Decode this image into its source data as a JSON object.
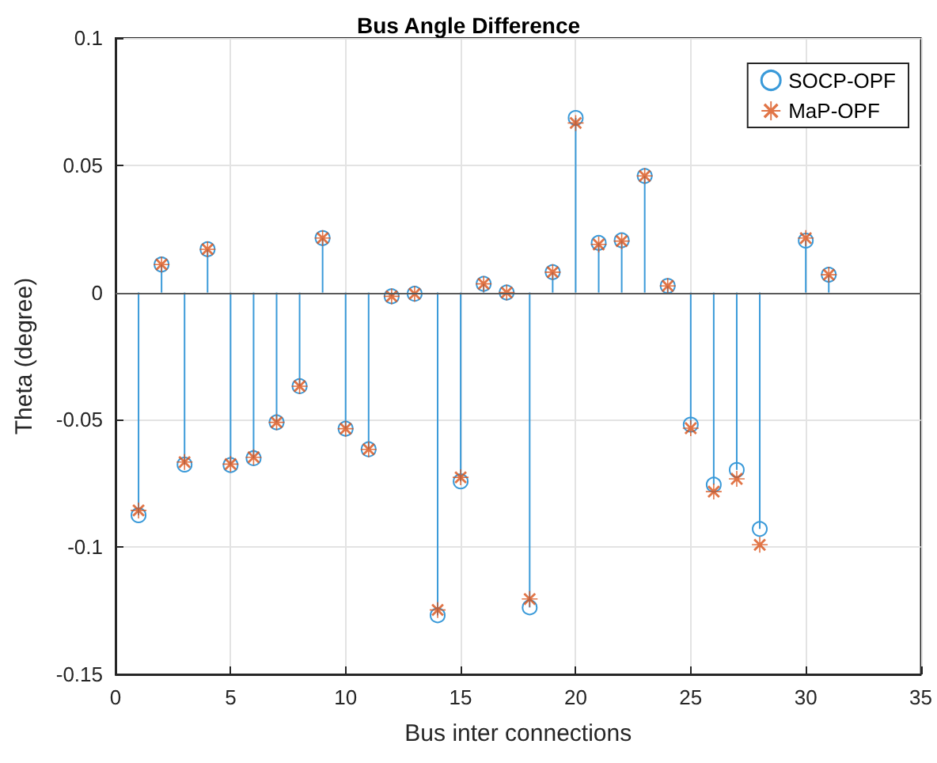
{
  "chart_data": {
    "type": "lollipop",
    "title": "Bus Angle Difference",
    "xlabel": "Bus inter connections",
    "ylabel": "Theta (degree)",
    "x": [
      1,
      2,
      3,
      4,
      5,
      6,
      7,
      8,
      9,
      10,
      11,
      12,
      13,
      14,
      15,
      16,
      17,
      18,
      19,
      20,
      21,
      22,
      23,
      24,
      25,
      26,
      27,
      28,
      29,
      30,
      31
    ],
    "series": [
      {
        "name": "SOCP-OPF",
        "marker": "circle",
        "color": "#3a9ad9",
        "values": [
          -0.0875,
          0.011,
          -0.0676,
          0.017,
          -0.0678,
          -0.0651,
          -0.051,
          -0.0368,
          0.0214,
          -0.0535,
          -0.0616,
          -0.0015,
          -0.0005,
          -0.1268,
          -0.0742,
          0.0034,
          0.0,
          -0.1237,
          0.008,
          0.0686,
          0.0195,
          0.0205,
          0.0458,
          0.0026,
          -0.0519,
          -0.0755,
          -0.0697,
          -0.0929,
          null,
          0.0204,
          0.007
        ]
      },
      {
        "name": "MaP-OPF",
        "type": "scatter",
        "marker": "star",
        "color": "#d95319",
        "values": [
          -0.0856,
          0.011,
          -0.0666,
          0.017,
          -0.0674,
          -0.0647,
          -0.051,
          -0.0368,
          0.0214,
          -0.0535,
          -0.0616,
          -0.0015,
          -0.0005,
          -0.1247,
          -0.0726,
          0.0034,
          0.0,
          -0.1204,
          0.008,
          0.0666,
          0.0189,
          0.0202,
          0.0458,
          0.0026,
          -0.0533,
          -0.0782,
          -0.0732,
          -0.0991,
          null,
          0.0214,
          0.007
        ]
      }
    ],
    "ref_lines": [
      {
        "axis": "y",
        "value": 0,
        "color": "#595959"
      }
    ],
    "xlim": [
      0,
      35
    ],
    "xticks": [
      0,
      5,
      10,
      15,
      20,
      25,
      30,
      35
    ],
    "ylim": [
      -0.15,
      0.1
    ],
    "yticks": [
      -0.15,
      -0.1,
      -0.05,
      0,
      0.05,
      0.1
    ],
    "grid": true,
    "legend": "top right"
  }
}
